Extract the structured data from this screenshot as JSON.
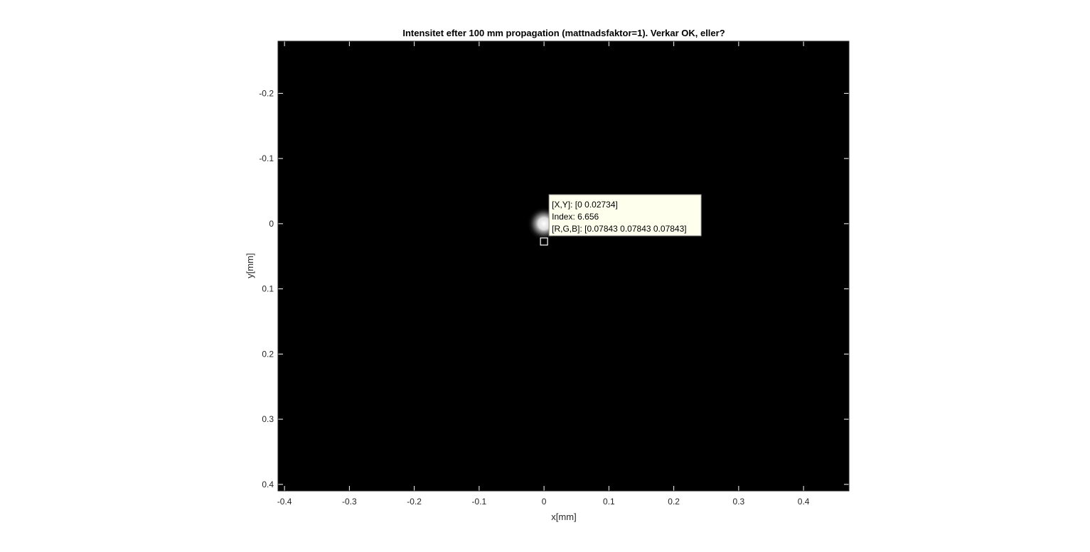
{
  "chart_data": {
    "type": "heatmap",
    "title": "Intensitet efter 100 mm propagation (mattnadsfaktor=1). Verkar OK, eller?",
    "xlabel": "x[mm]",
    "ylabel": "y[mm]",
    "colormap": "gray",
    "y_direction": "reverse",
    "xlim": [
      -0.41,
      0.47
    ],
    "ylim": [
      -0.28,
      0.41
    ],
    "x_ticks": [
      -0.4,
      -0.3,
      -0.2,
      -0.1,
      0,
      0.1,
      0.2,
      0.3,
      0.4
    ],
    "x_tick_labels": [
      "-0.4",
      "-0.3",
      "-0.2",
      "-0.1",
      "0",
      "0.1",
      "0.2",
      "0.3",
      "0.4"
    ],
    "y_ticks": [
      -0.2,
      -0.1,
      0,
      0.1,
      0.2,
      0.3,
      0.4
    ],
    "y_tick_labels": [
      "-0.2",
      "-0.1",
      "0",
      "0.1",
      "0.2",
      "0.3",
      "0.4"
    ],
    "beam": {
      "center_x": 0,
      "center_y": 0,
      "sigma": 0.012
    },
    "datatip": {
      "x": 0,
      "y": 0.02734,
      "lines": [
        "[X,Y]: [0 0.02734]",
        "Index: 6.656",
        "[R,G,B]: [0.07843 0.07843 0.07843]"
      ]
    },
    "colors": {
      "background": "#000000",
      "datatip_fill": "#ffffee",
      "datatip_border": "#8c8c8c",
      "axis": "#262626"
    }
  }
}
